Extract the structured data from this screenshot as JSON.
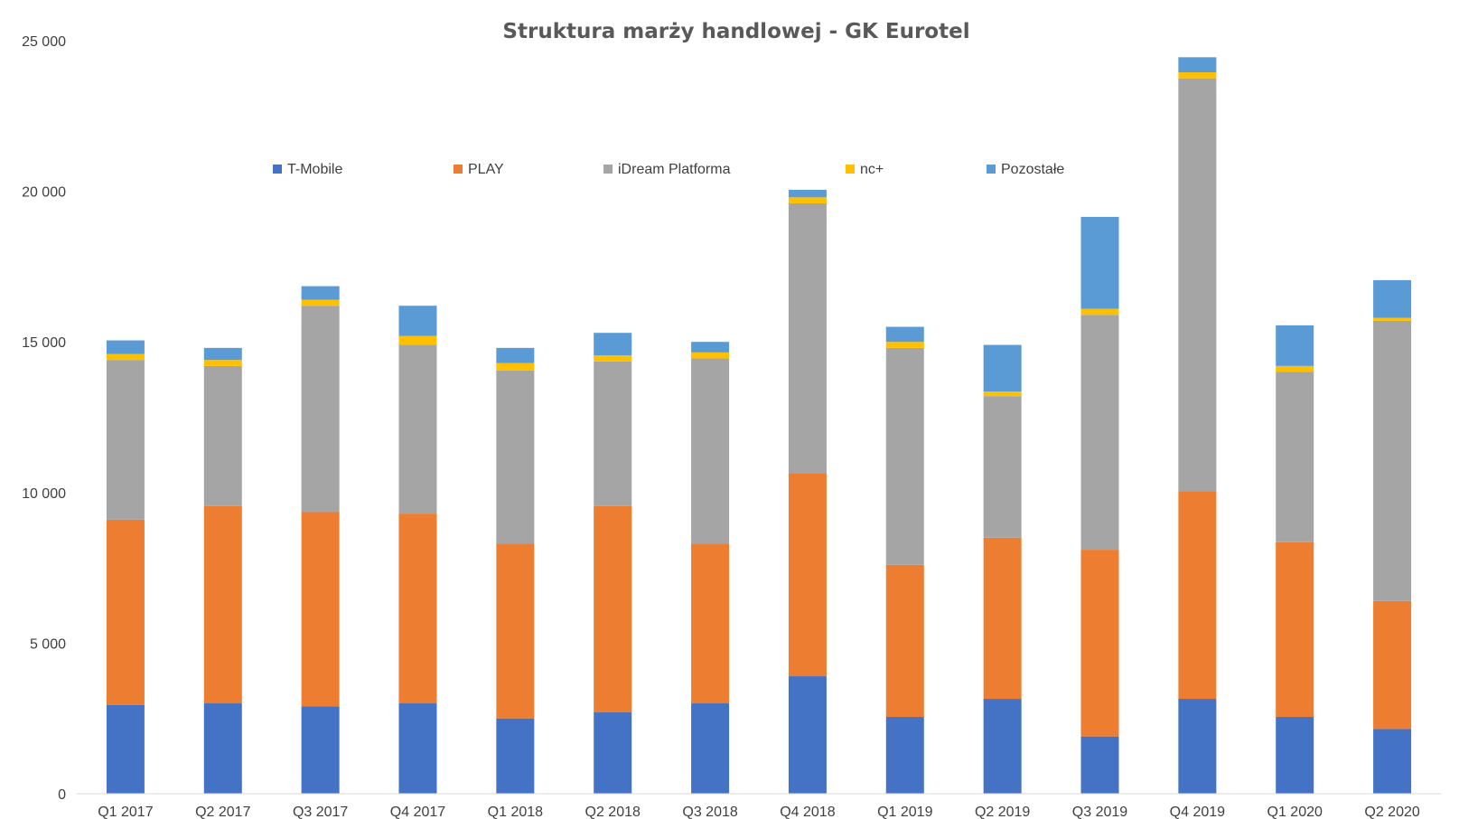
{
  "chart_data": {
    "type": "bar",
    "stacked": true,
    "title": "Struktura marży handlowej - GK Eurotel",
    "xlabel": "",
    "ylabel": "",
    "ylim": [
      0,
      25000
    ],
    "yticks": [
      0,
      5000,
      10000,
      15000,
      20000,
      25000
    ],
    "ytick_labels": [
      "0",
      "5 000",
      "10 000",
      "15 000",
      "20 000",
      "25 000"
    ],
    "grid": false,
    "legend_position": "top",
    "categories": [
      "Q1 2017",
      "Q2 2017",
      "Q3 2017",
      "Q4 2017",
      "Q1 2018",
      "Q2 2018",
      "Q3 2018",
      "Q4 2018",
      "Q1 2019",
      "Q2 2019",
      "Q3 2019",
      "Q4 2019",
      "Q1 2020",
      "Q2 2020"
    ],
    "series": [
      {
        "name": "T-Mobile",
        "color": "#4472C4",
        "values": [
          2950,
          3000,
          2900,
          3000,
          2500,
          2700,
          3000,
          3900,
          2550,
          3150,
          1900,
          3150,
          2550,
          2150
        ]
      },
      {
        "name": "PLAY",
        "color": "#ED7D31",
        "values": [
          6150,
          6550,
          6450,
          6300,
          5800,
          6850,
          5300,
          6750,
          5050,
          5350,
          6200,
          6900,
          5800,
          4250
        ]
      },
      {
        "name": "iDream Platforma",
        "color": "#A5A5A5",
        "values": [
          5300,
          4650,
          6850,
          5600,
          5750,
          4800,
          6150,
          8950,
          7200,
          4700,
          7800,
          13700,
          5650,
          9300
        ]
      },
      {
        "name": "nc+",
        "color": "#FFC000",
        "values": [
          200,
          200,
          200,
          300,
          250,
          200,
          200,
          200,
          200,
          150,
          200,
          200,
          200,
          100
        ]
      },
      {
        "name": "Pozostałe",
        "color": "#5B9BD5",
        "values": [
          450,
          400,
          450,
          1000,
          500,
          750,
          350,
          250,
          500,
          1550,
          3050,
          500,
          1350,
          1250
        ]
      }
    ]
  }
}
